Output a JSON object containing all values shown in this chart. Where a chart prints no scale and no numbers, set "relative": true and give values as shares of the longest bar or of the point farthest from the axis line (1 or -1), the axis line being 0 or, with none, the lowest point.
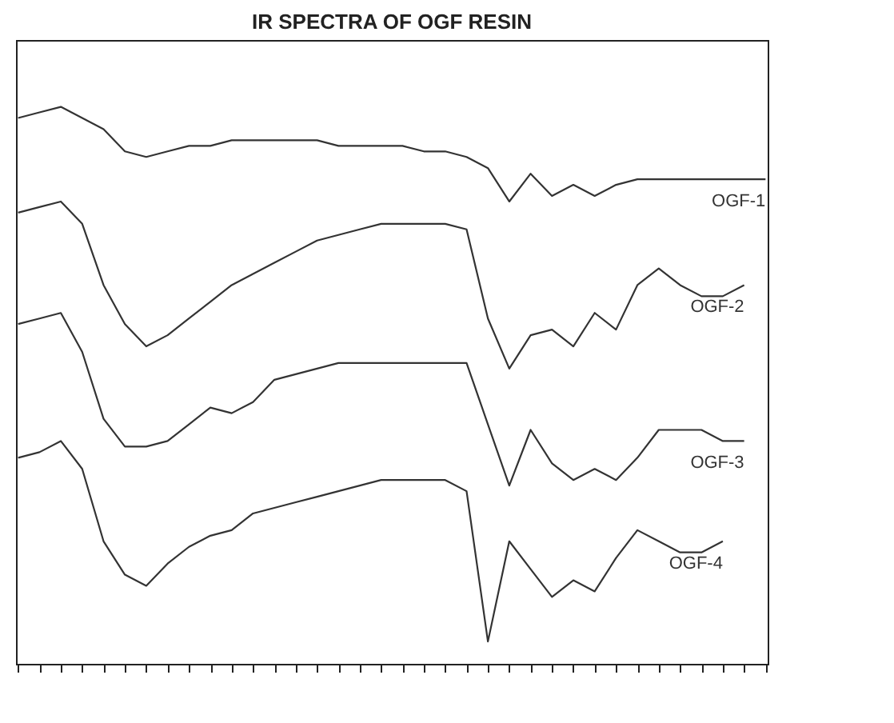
{
  "chart_data": {
    "type": "line",
    "title": "IR SPECTRA OF OGF RESIN",
    "relative": true,
    "legend": false,
    "grid": false,
    "categories": [
      null,
      null,
      null,
      null,
      null,
      null,
      null,
      null,
      null,
      null,
      null,
      null,
      null,
      null,
      null,
      null,
      null,
      null,
      null,
      null,
      null,
      null,
      null,
      null,
      null,
      null,
      null,
      null,
      null,
      null,
      null,
      null,
      null,
      null,
      null,
      null
    ],
    "series": [
      {
        "name": "OGF-1",
        "color": "#333333",
        "values": [
          0.98,
          0.99,
          1.0,
          0.98,
          0.96,
          0.92,
          0.91,
          0.92,
          0.93,
          0.93,
          0.94,
          0.94,
          0.94,
          0.94,
          0.94,
          0.93,
          0.93,
          0.93,
          0.93,
          0.92,
          0.92,
          0.91,
          0.89,
          0.83,
          0.88,
          0.84,
          0.86,
          0.84,
          0.86,
          0.87,
          0.87,
          0.87,
          0.87,
          0.87,
          0.87,
          0.87
        ]
      },
      {
        "name": "OGF-2",
        "color": "#333333",
        "values": [
          0.81,
          0.82,
          0.83,
          0.79,
          0.68,
          0.61,
          0.57,
          0.59,
          0.62,
          0.65,
          0.68,
          0.7,
          0.72,
          0.74,
          0.76,
          0.77,
          0.78,
          0.79,
          0.79,
          0.79,
          0.79,
          0.78,
          0.62,
          0.53,
          0.59,
          0.6,
          0.57,
          0.63,
          0.6,
          0.68,
          0.71,
          0.68,
          0.66,
          0.66,
          0.68,
          null
        ]
      },
      {
        "name": "OGF-3",
        "color": "#333333",
        "values": [
          0.61,
          0.62,
          0.63,
          0.56,
          0.44,
          0.39,
          0.39,
          0.4,
          0.43,
          0.46,
          0.45,
          0.47,
          0.51,
          0.52,
          0.53,
          0.54,
          0.54,
          0.54,
          0.54,
          0.54,
          0.54,
          0.54,
          0.43,
          0.32,
          0.42,
          0.36,
          0.33,
          0.35,
          0.33,
          0.37,
          0.42,
          0.42,
          0.42,
          0.4,
          0.4,
          null
        ]
      },
      {
        "name": "OGF-4",
        "color": "#333333",
        "values": [
          0.37,
          0.38,
          0.4,
          0.35,
          0.22,
          0.16,
          0.14,
          0.18,
          0.21,
          0.23,
          0.24,
          0.27,
          0.28,
          0.29,
          0.3,
          0.31,
          0.32,
          0.33,
          0.33,
          0.33,
          0.33,
          0.31,
          0.04,
          0.22,
          0.17,
          0.12,
          0.15,
          0.13,
          0.19,
          0.24,
          0.22,
          0.2,
          0.2,
          0.22,
          null,
          null
        ]
      }
    ]
  }
}
